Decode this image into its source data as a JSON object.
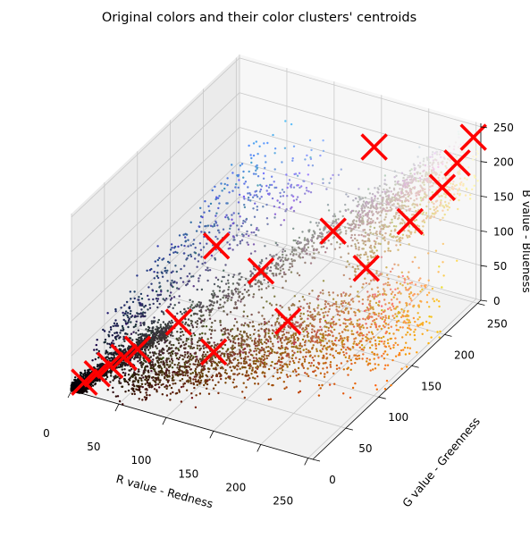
{
  "chart_data": {
    "type": "scatter",
    "title": "Original colors and their color clusters' centroids",
    "xlabel": "R value - Redness",
    "ylabel": "G value - Greenness",
    "zlabel": "B value - Blueness",
    "xlim": [
      0,
      255
    ],
    "ylim": [
      0,
      255
    ],
    "zlim": [
      0,
      255
    ],
    "x_ticks": [
      0,
      50,
      100,
      150,
      200,
      250
    ],
    "y_ticks": [
      0,
      50,
      100,
      150,
      200,
      250
    ],
    "z_ticks": [
      0,
      50,
      100,
      150,
      200,
      250
    ],
    "grid": true,
    "series": [
      {
        "kind": "original colors (points colored by their own RGB value)",
        "marker_size": 2,
        "point_count": 6000
      },
      {
        "kind": "cluster centroids",
        "marker": "x",
        "color": "#ff0000",
        "points": [
          {
            "r": 8,
            "g": 8,
            "b": 8
          },
          {
            "r": 16,
            "g": 16,
            "b": 16
          },
          {
            "r": 24,
            "g": 24,
            "b": 24
          },
          {
            "r": 33,
            "g": 32,
            "b": 32
          },
          {
            "r": 42,
            "g": 40,
            "b": 40
          },
          {
            "r": 70,
            "g": 62,
            "b": 70
          },
          {
            "r": 80,
            "g": 105,
            "b": 145
          },
          {
            "r": 105,
            "g": 65,
            "b": 38
          },
          {
            "r": 118,
            "g": 118,
            "b": 112
          },
          {
            "r": 152,
            "g": 110,
            "b": 60
          },
          {
            "r": 165,
            "g": 160,
            "b": 150
          },
          {
            "r": 200,
            "g": 160,
            "b": 110
          },
          {
            "r": 175,
            "g": 208,
            "b": 232
          },
          {
            "r": 224,
            "g": 192,
            "b": 158
          },
          {
            "r": 240,
            "g": 218,
            "b": 190
          },
          {
            "r": 246,
            "g": 232,
            "b": 215
          },
          {
            "r": 252,
            "g": 248,
            "b": 240
          }
        ]
      }
    ]
  }
}
